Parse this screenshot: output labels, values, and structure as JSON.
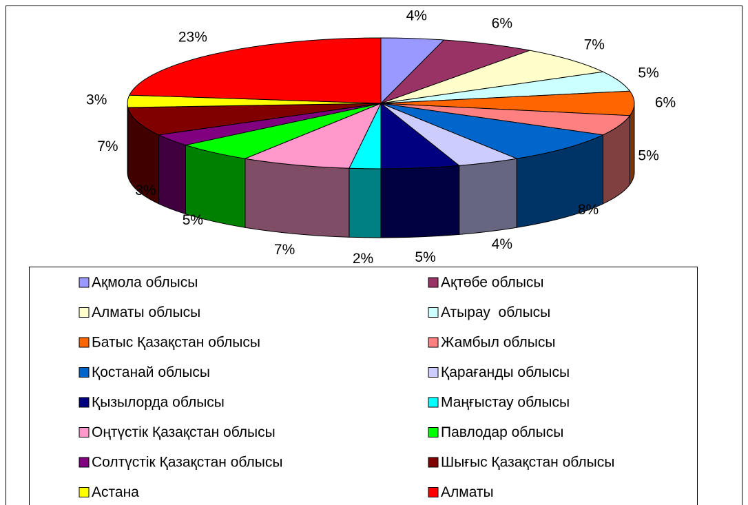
{
  "chart_data": {
    "type": "pie3d",
    "categories": [
      "Ақмола облысы",
      "Ақтөбе облысы",
      "Алматы облысы",
      "Атырау  облысы",
      "Батыс Қазақстан облысы",
      "Жамбыл облысы",
      "Қостанай облысы",
      "Қарағанды облысы",
      "Қызылорда облысы",
      "Маңғыстау облысы",
      "Оңтүстік Қазақстан облысы",
      "Павлодар облысы",
      "Солтүстік Қазақстан облысы",
      "Шығыс Қазақстан облысы",
      "Астана",
      "Алматы"
    ],
    "values": [
      4,
      6,
      7,
      5,
      6,
      5,
      8,
      4,
      5,
      2,
      7,
      5,
      3,
      7,
      3,
      23
    ],
    "value_labels": [
      "4%",
      "6%",
      "7%",
      "5%",
      "6%",
      "5%",
      "8%",
      "4%",
      "5%",
      "2%",
      "7%",
      "5%",
      "3%",
      "7%",
      "3%",
      "23%"
    ],
    "colors": [
      "#9999ff",
      "#993366",
      "#ffffcc",
      "#ccffff",
      "#ff6600",
      "#ff8080",
      "#0066cc",
      "#ccccff",
      "#000080",
      "#00ffff",
      "#ff99cc",
      "#00ff00",
      "#800080",
      "#800000",
      "#ffff00",
      "#ff0000"
    ],
    "legend": "bottom"
  }
}
